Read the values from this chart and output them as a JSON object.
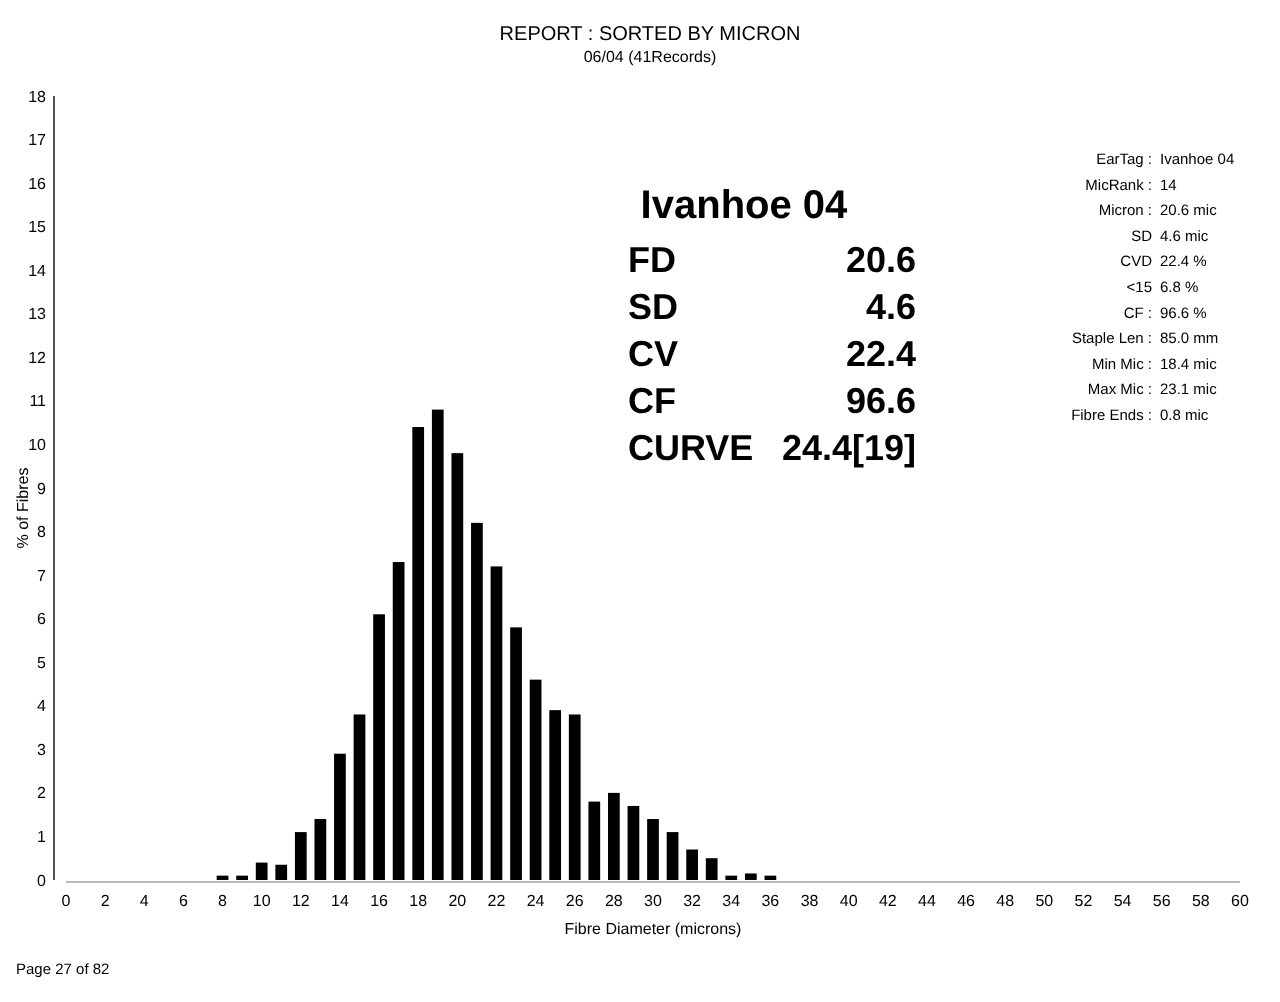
{
  "chart_data": {
    "type": "histogram",
    "title": "REPORT : SORTED BY MICRON",
    "subtitle": "06/04 (41Records)",
    "xlabel": "Fibre Diameter (microns)",
    "ylabel": "% of Fibres",
    "bins": [
      7.5,
      8.5,
      9.5,
      10.5,
      11.5,
      12.5,
      13.5,
      14.5,
      15.5,
      16.5,
      17.5,
      18.5,
      19.5,
      20.5,
      21.5,
      22.5,
      23.5,
      24.5,
      25.5,
      26.5,
      27.5,
      28.5,
      29.5,
      30.5,
      31.5,
      32.5,
      33.5,
      34.5,
      35.5,
      36.5
    ],
    "values": [
      0.1,
      0.1,
      0.4,
      0.35,
      1.1,
      1.4,
      2.9,
      3.8,
      6.1,
      7.3,
      10.4,
      10.8,
      9.8,
      8.2,
      7.2,
      5.8,
      4.6,
      3.9,
      3.8,
      1.8,
      2.0,
      1.7,
      1.4,
      1.1,
      0.7,
      0.5,
      0.1,
      0.15,
      0.1
    ],
    "color": "#000000",
    "xlim": [
      0,
      60
    ],
    "xticks": [
      0,
      2,
      4,
      6,
      8,
      10,
      12,
      14,
      16,
      18,
      20,
      22,
      24,
      26,
      28,
      30,
      32,
      34,
      36,
      38,
      40,
      42,
      44,
      46,
      48,
      50,
      52,
      54,
      56,
      58,
      60
    ],
    "ylim": [
      0,
      18
    ],
    "yticks": [
      0,
      1,
      2,
      3,
      4,
      5,
      6,
      7,
      8,
      9,
      10,
      11,
      12,
      13,
      14,
      15,
      16,
      17,
      18
    ],
    "annotations": [
      "Ivanhoe 04",
      "FD\t20.6",
      "SD\t4.6",
      "CV\t22.4",
      "CF\t96.6",
      "CURVE\t24.4[19]",
      "EarTag :\tIvanhoe 04",
      "MicRank :\t14",
      "Micron :\t20.6 mic",
      "SD\t4.6 mic",
      "CVD\t22.4 %",
      "<15\t6.8 %",
      "CF :\t96.6 %",
      "Staple Len :\t85.0 mm",
      "Min Mic :\t18.4 mic",
      "Max Mic :\t23.1 mic",
      "Fibre Ends :\t0.8 mic",
      "Page 27 of 82"
    ]
  }
}
